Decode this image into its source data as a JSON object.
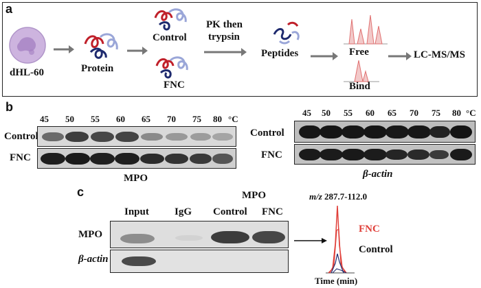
{
  "panel_a": {
    "letter": "a",
    "cell_label": "dHL-60",
    "protein_label": "Protein",
    "control_label": "Control",
    "fnc_label": "FNC",
    "treatment_label_1": "PK then",
    "treatment_label_2": "trypsin",
    "peptides_label": "Peptides",
    "free_label": "Free",
    "bind_label": "Bind",
    "lcms_label": "LC-MS/MS"
  },
  "panel_b": {
    "letter": "b",
    "temperatures": [
      "45",
      "50",
      "55",
      "60",
      "65",
      "70",
      "75",
      "80"
    ],
    "unit": "°C",
    "row_control": "Control",
    "row_fnc": "FNC",
    "left_protein": "MPO",
    "right_protein": "β-actin"
  },
  "panel_c": {
    "letter": "c",
    "ip_label": "MPO",
    "lanes": [
      "Input",
      "IgG",
      "Control",
      "FNC"
    ],
    "row_mpo": "MPO",
    "row_actin": "β-actin",
    "mz_prefix": "m/z",
    "mz_value": "287.7-112.0",
    "legend_fnc": "FNC",
    "legend_control": "Control",
    "time_label": "Time (min)"
  },
  "colors": {
    "accent_red": "#e0403a",
    "band_dark": "#1a1a1a",
    "frame": "#222222"
  }
}
